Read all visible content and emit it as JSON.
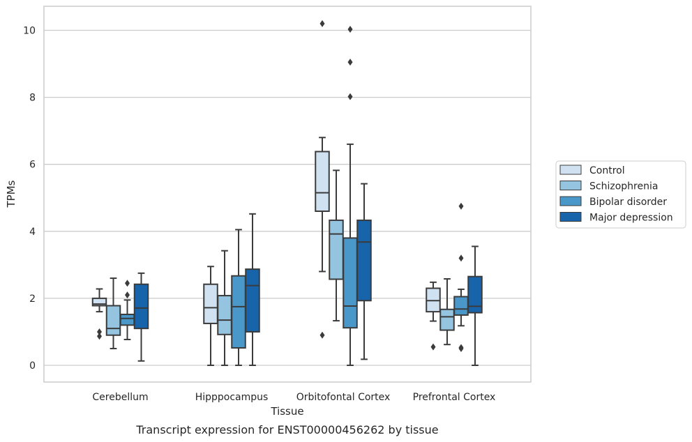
{
  "chart_data": {
    "type": "box",
    "caption": "Transcript expression for ENST00000456262 by tissue",
    "xlabel": "Tissue",
    "ylabel": "TPMs",
    "ylim": [
      -0.5,
      10.7
    ],
    "yticks": [
      0,
      2,
      4,
      6,
      8,
      10
    ],
    "grid": true,
    "legend_position": "right",
    "categories": [
      "Cerebellum",
      "Hipppocampus",
      "Orbitofontal Cortex",
      "Prefrontal Cortex"
    ],
    "series": [
      {
        "name": "Control",
        "color": "#d0e1f2",
        "boxes": [
          {
            "whisker_low": 1.6,
            "q1": 1.78,
            "median": 1.83,
            "q3": 2.0,
            "whisker_high": 2.28,
            "outliers": [
              1.0,
              0.87
            ]
          },
          {
            "whisker_low": 0.0,
            "q1": 1.25,
            "median": 1.72,
            "q3": 2.42,
            "whisker_high": 2.95,
            "outliers": []
          },
          {
            "whisker_low": 2.8,
            "q1": 4.6,
            "median": 5.15,
            "q3": 6.38,
            "whisker_high": 6.8,
            "outliers": [
              10.2,
              0.9
            ]
          },
          {
            "whisker_low": 1.32,
            "q1": 1.6,
            "median": 1.93,
            "q3": 2.3,
            "whisker_high": 2.48,
            "outliers": [
              0.55
            ]
          }
        ]
      },
      {
        "name": "Schizophrenia",
        "color": "#94c4df",
        "boxes": [
          {
            "whisker_low": 0.5,
            "q1": 0.9,
            "median": 1.1,
            "q3": 1.78,
            "whisker_high": 2.6,
            "outliers": []
          },
          {
            "whisker_low": 0.0,
            "q1": 0.92,
            "median": 1.35,
            "q3": 2.08,
            "whisker_high": 3.42,
            "outliers": []
          },
          {
            "whisker_low": 1.33,
            "q1": 2.57,
            "median": 3.92,
            "q3": 4.33,
            "whisker_high": 5.82,
            "outliers": []
          },
          {
            "whisker_low": 0.62,
            "q1": 1.05,
            "median": 1.45,
            "q3": 1.67,
            "whisker_high": 2.58,
            "outliers": []
          }
        ]
      },
      {
        "name": "Bipolar disorder",
        "color": "#4a98c9",
        "boxes": [
          {
            "whisker_low": 0.77,
            "q1": 1.2,
            "median": 1.4,
            "q3": 1.52,
            "whisker_high": 1.95,
            "outliers": [
              2.45,
              2.1
            ]
          },
          {
            "whisker_low": 0.0,
            "q1": 0.52,
            "median": 1.75,
            "q3": 2.67,
            "whisker_high": 4.05,
            "outliers": []
          },
          {
            "whisker_low": 0.0,
            "q1": 1.12,
            "median": 1.77,
            "q3": 3.8,
            "whisker_high": 6.6,
            "outliers": [
              10.03,
              9.05,
              8.02
            ]
          },
          {
            "whisker_low": 1.18,
            "q1": 1.5,
            "median": 1.68,
            "q3": 2.05,
            "whisker_high": 2.27,
            "outliers": [
              4.75,
              3.2,
              0.53,
              0.5
            ]
          }
        ]
      },
      {
        "name": "Major depression",
        "color": "#1764ab",
        "boxes": [
          {
            "whisker_low": 0.13,
            "q1": 1.1,
            "median": 1.71,
            "q3": 2.42,
            "whisker_high": 2.75,
            "outliers": []
          },
          {
            "whisker_low": 0.0,
            "q1": 1.0,
            "median": 2.38,
            "q3": 2.87,
            "whisker_high": 4.52,
            "outliers": []
          },
          {
            "whisker_low": 0.18,
            "q1": 1.93,
            "median": 3.68,
            "q3": 4.33,
            "whisker_high": 5.42,
            "outliers": []
          },
          {
            "whisker_low": 0.0,
            "q1": 1.57,
            "median": 1.76,
            "q3": 2.65,
            "whisker_high": 3.55,
            "outliers": []
          }
        ]
      }
    ]
  }
}
